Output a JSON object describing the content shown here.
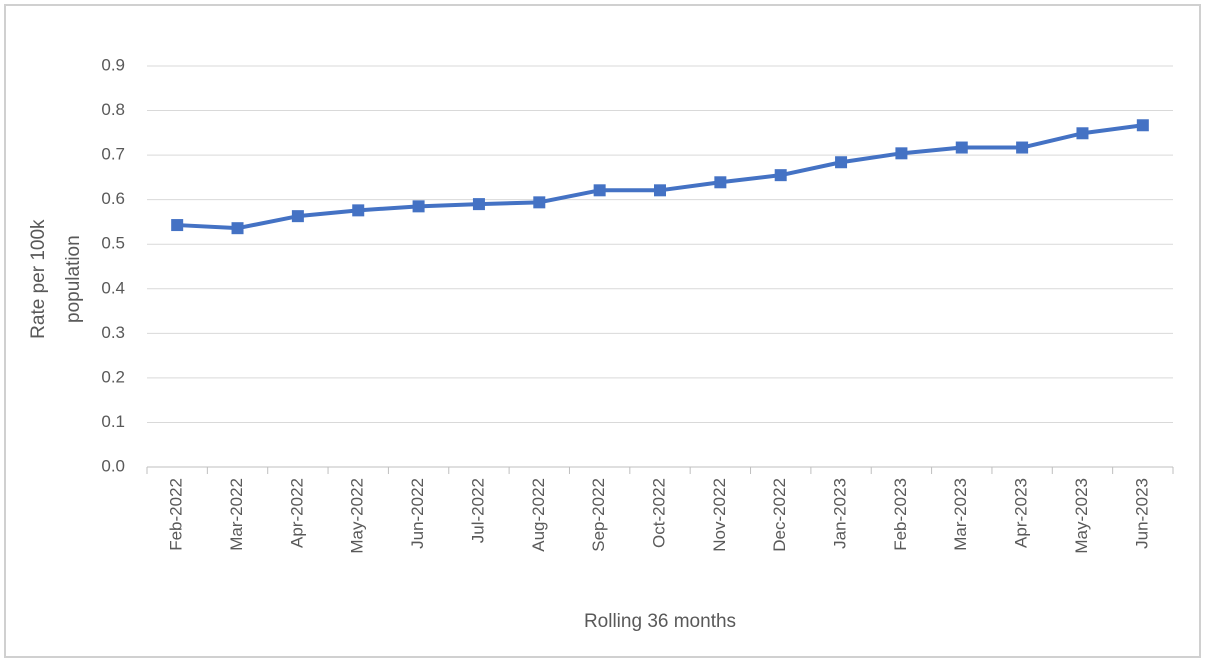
{
  "chart_data": {
    "type": "line",
    "x_label": "Rolling 36 months",
    "y_label": "Rate per 100k population",
    "categories": [
      "Feb-2022",
      "Mar-2022",
      "Apr-2022",
      "May-2022",
      "Jun-2022",
      "Jul-2022",
      "Aug-2022",
      "Sep-2022",
      "Oct-2022",
      "Nov-2022",
      "Dec-2022",
      "Jan-2023",
      "Feb-2023",
      "Mar-2023",
      "Apr-2023",
      "May-2023",
      "Jun-2023"
    ],
    "values": [
      0.543,
      0.536,
      0.563,
      0.576,
      0.585,
      0.59,
      0.594,
      0.621,
      0.621,
      0.639,
      0.655,
      0.684,
      0.704,
      0.717,
      0.717,
      0.749,
      0.767
    ],
    "color": "#4472c4",
    "ylim": [
      0,
      0.9
    ],
    "yticks": [
      {
        "value": 0,
        "label": "0.0"
      },
      0.1,
      0.2,
      0.3,
      0.4,
      0.5,
      0.6,
      0.7,
      0.8,
      0.9
    ],
    "grid": true
  }
}
